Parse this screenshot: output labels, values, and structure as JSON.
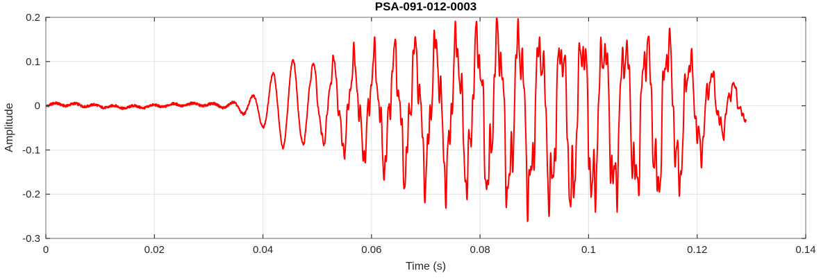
{
  "chart_data": {
    "type": "line",
    "title": "PSA-091-012-0003",
    "xlabel": "Time (s)",
    "ylabel": "Amplitude",
    "xlim": [
      0,
      0.14
    ],
    "ylim": [
      -0.3,
      0.2
    ],
    "xticks": [
      0,
      0.02,
      0.04,
      0.06,
      0.08,
      0.1,
      0.12,
      0.14
    ],
    "xtick_labels": [
      "0",
      "0.02",
      "0.04",
      "0.06",
      "0.08",
      "0.1",
      "0.12",
      "0.14"
    ],
    "yticks": [
      -0.3,
      -0.2,
      -0.1,
      0,
      0.1,
      0.2
    ],
    "ytick_labels": [
      "-0.3",
      "-0.2",
      "-0.1",
      "0",
      "0.1",
      "0.2"
    ],
    "grid": true,
    "legend": null,
    "colors": {
      "line": "#ff0000",
      "grid": "#e2e2e2",
      "axis_box": "#8c8c8c",
      "tick": "#333333",
      "tick_label": "#262626",
      "title": "#000000",
      "background": "#ffffff"
    },
    "series": [
      {
        "name": "PSA-091-012-0003",
        "color": "#ff0000",
        "description": "Transient oscillatory waveform: quiet noise floor until ~0.032 s, growing ~250 Hz oscillation with high-frequency ripple, peak amplitude +0.20 near t=0.086, deepest trough -0.27 near t=0.097, decaying and ending at t=0.129 s.",
        "signal": {
          "t_start": 0.0,
          "t_end": 0.129,
          "dt": 5e-05,
          "carrier": {
            "t0": 0.0335,
            "f0_hz": 272,
            "chirp_hz_per_s": -250
          },
          "harmonics": [
            [
              3.05,
              0.3,
              0.7
            ],
            [
              5.9,
              0.18,
              2.3
            ],
            [
              9.7,
              0.1,
              4.0
            ]
          ],
          "hf_onset": 0.046,
          "hf_ramp": 0.012,
          "noise_amp": 0.0028,
          "baseline_wobble": [
            0.003,
            40,
            1.0
          ],
          "pos_envelope": [
            [
              0.0,
              0.003
            ],
            [
              0.03,
              0.003
            ],
            [
              0.0335,
              0.005
            ],
            [
              0.0345,
              0.009
            ],
            [
              0.0365,
              0.013
            ],
            [
              0.0385,
              0.028
            ],
            [
              0.0402,
              0.05
            ],
            [
              0.0421,
              0.08
            ],
            [
              0.0438,
              0.092
            ],
            [
              0.0456,
              0.105
            ],
            [
              0.049,
              0.095
            ],
            [
              0.0535,
              0.107
            ],
            [
              0.058,
              0.123
            ],
            [
              0.062,
              0.135
            ],
            [
              0.066,
              0.152
            ],
            [
              0.07,
              0.163
            ],
            [
              0.074,
              0.164
            ],
            [
              0.078,
              0.17
            ],
            [
              0.082,
              0.193
            ],
            [
              0.086,
              0.198
            ],
            [
              0.09,
              0.175
            ],
            [
              0.094,
              0.16
            ],
            [
              0.098,
              0.173
            ],
            [
              0.102,
              0.168
            ],
            [
              0.106,
              0.158
            ],
            [
              0.11,
              0.168
            ],
            [
              0.1135,
              0.19
            ],
            [
              0.117,
              0.148
            ],
            [
              0.12,
              0.108
            ],
            [
              0.123,
              0.078
            ],
            [
              0.126,
              0.058
            ],
            [
              0.129,
              0.035
            ]
          ],
          "neg_envelope": [
            [
              0.0,
              0.003
            ],
            [
              0.03,
              0.003
            ],
            [
              0.0335,
              0.006
            ],
            [
              0.0363,
              0.016
            ],
            [
              0.038,
              0.03
            ],
            [
              0.0402,
              0.047
            ],
            [
              0.0438,
              0.095
            ],
            [
              0.047,
              0.09
            ],
            [
              0.05,
              0.082
            ],
            [
              0.055,
              0.115
            ],
            [
              0.059,
              0.13
            ],
            [
              0.063,
              0.16
            ],
            [
              0.067,
              0.18
            ],
            [
              0.071,
              0.19
            ],
            [
              0.075,
              0.205
            ],
            [
              0.079,
              0.21
            ],
            [
              0.083,
              0.22
            ],
            [
              0.087,
              0.25
            ],
            [
              0.091,
              0.235
            ],
            [
              0.095,
              0.272
            ],
            [
              0.099,
              0.27
            ],
            [
              0.103,
              0.258
            ],
            [
              0.107,
              0.235
            ],
            [
              0.111,
              0.222
            ],
            [
              0.1145,
              0.24
            ],
            [
              0.118,
              0.18
            ],
            [
              0.121,
              0.12
            ],
            [
              0.124,
              0.08
            ],
            [
              0.127,
              0.05
            ],
            [
              0.129,
              0.035
            ]
          ]
        }
      }
    ]
  }
}
